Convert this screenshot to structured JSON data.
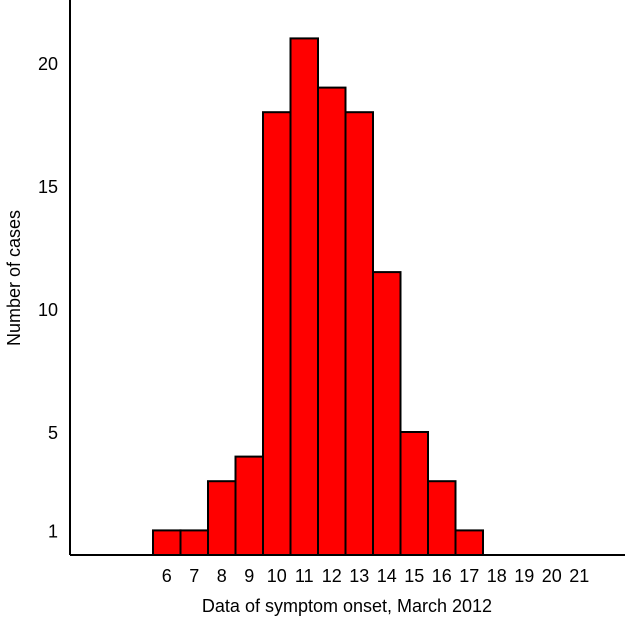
{
  "chart_data": {
    "type": "bar",
    "title": "",
    "xlabel": "Data of symptom onset, March 2012",
    "ylabel": "Number of cases",
    "categories": [
      "6",
      "7",
      "8",
      "9",
      "10",
      "11",
      "12",
      "13",
      "14",
      "15",
      "16",
      "17",
      "18",
      "19",
      "20",
      "21"
    ],
    "values": [
      1,
      1,
      3,
      4,
      18,
      21,
      19,
      18,
      11.5,
      5,
      3,
      1,
      0,
      0,
      0,
      0
    ],
    "yticks": [
      1,
      5,
      10,
      15,
      20
    ],
    "ylim": [
      0,
      22.5
    ],
    "grid": false,
    "bar_color": "#ff0000",
    "bar_edge_color": "#000000"
  }
}
